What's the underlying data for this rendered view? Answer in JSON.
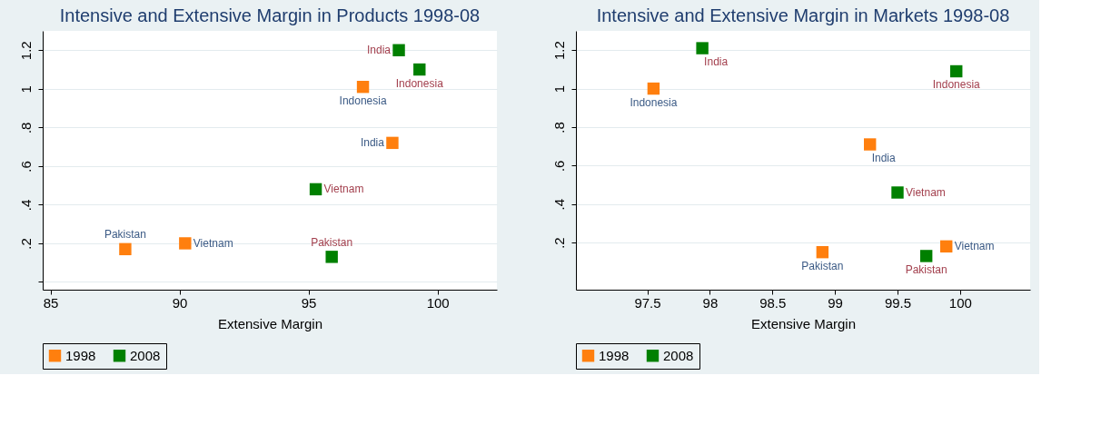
{
  "chart_data": [
    {
      "type": "scatter",
      "title": "Intensive and Extensive Margin in Products 1998-08",
      "xlabel": "Extensive Margin",
      "series": [
        {
          "name": "1998",
          "color": "#ff7f0e",
          "x": [
            87.9,
            90.22,
            97.11,
            98.25
          ],
          "values": [
            0.17,
            0.2,
            1.01,
            0.72
          ]
        },
        {
          "name": "2008",
          "color": "#008000",
          "x": [
            98.5,
            99.3,
            95.28,
            95.9
          ],
          "values": [
            1.2,
            1.1,
            0.48,
            0.13
          ]
        }
      ],
      "annotations": [
        {
          "text": "Pakistan",
          "x": 87.9,
          "y": 0.17
        },
        {
          "text": "Vietnam",
          "x": 90.22,
          "y": 0.2
        },
        {
          "text": "Indonesia",
          "x": 97.11,
          "y": 1.01
        },
        {
          "text": "India",
          "x": 98.25,
          "y": 0.72
        },
        {
          "text": "India",
          "x": 98.5,
          "y": 1.2
        },
        {
          "text": "Indonesia",
          "x": 99.3,
          "y": 1.1
        },
        {
          "text": "Vietnam",
          "x": 95.28,
          "y": 0.48
        },
        {
          "text": "Pakistan",
          "x": 95.9,
          "y": 0.13
        }
      ],
      "xlim": [
        84.7,
        102.3
      ],
      "xticks": [
        85,
        90,
        95,
        100
      ],
      "ylim": [
        -0.04,
        1.3
      ],
      "yticks": [
        {
          "value": 0,
          "label": null
        },
        {
          "value": 0.2,
          "label": ".2"
        },
        {
          "value": 0.4,
          "label": ".4"
        },
        {
          "value": 0.6,
          "label": ".6"
        },
        {
          "value": 0.8,
          "label": ".8"
        },
        1,
        1.2
      ],
      "grid": "y",
      "legend": "bottom",
      "marker": "square"
    },
    {
      "type": "scatter",
      "title": "Intensive and Extensive Margin in Markets 1998-08",
      "xlabel": "Extensive Margin",
      "series": [
        {
          "name": "1998",
          "color": "#ff7f0e",
          "x": [
            97.55,
            99.28,
            98.9,
            99.89
          ],
          "values": [
            1.0,
            0.71,
            0.15,
            0.18
          ]
        },
        {
          "name": "2008",
          "color": "#008000",
          "x": [
            97.94,
            99.97,
            99.5,
            99.73
          ],
          "values": [
            1.21,
            1.09,
            0.46,
            0.13
          ]
        }
      ],
      "annotations": [
        {
          "text": "Indonesia",
          "x": 97.55,
          "y": 1.0
        },
        {
          "text": "India",
          "x": 99.28,
          "y": 0.71
        },
        {
          "text": "Pakistan",
          "x": 98.9,
          "y": 0.15
        },
        {
          "text": "Vietnam",
          "x": 99.89,
          "y": 0.18
        },
        {
          "text": "India",
          "x": 97.94,
          "y": 1.21
        },
        {
          "text": "Indonesia",
          "x": 99.97,
          "y": 1.09
        },
        {
          "text": "Vietnam",
          "x": 99.5,
          "y": 0.46
        },
        {
          "text": "Pakistan",
          "x": 99.73,
          "y": 0.13
        }
      ],
      "xlim": [
        96.93,
        100.56
      ],
      "xticks": [
        97.5,
        98,
        98.5,
        99,
        99.5,
        100
      ],
      "ylim": [
        -0.045,
        1.3
      ],
      "yticks": [
        {
          "value": 0.2,
          "label": ".2"
        },
        {
          "value": 0.4,
          "label": ".4"
        },
        {
          "value": 0.6,
          "label": ".6"
        },
        {
          "value": 0.8,
          "label": ".8"
        },
        1,
        1.2
      ],
      "grid": "y",
      "legend": "bottom",
      "marker": "square"
    }
  ]
}
